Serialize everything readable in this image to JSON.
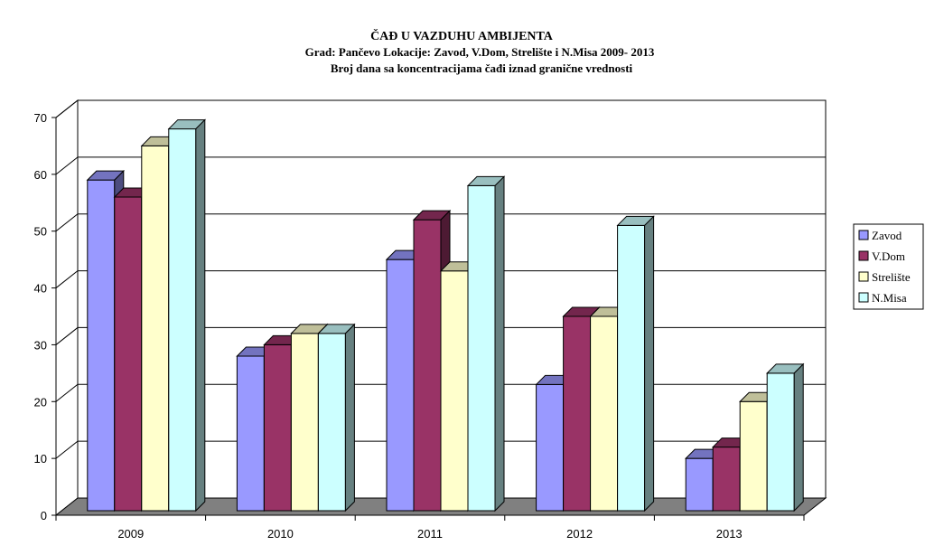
{
  "chart_data": {
    "type": "bar",
    "title": "ČAĐ U VAZDUHU AMBIJENTA",
    "subtitle": "Grad: Pančevo  Lokacije: Zavod, V.Dom, Strelište i N.Misa  2009- 2013",
    "subtitle2": "Broj dana sa koncentracijama čađi iznad granične vrednosti",
    "xlabel": "",
    "ylabel": "",
    "categories": [
      "2009",
      "2010",
      "2011",
      "2012",
      "2013"
    ],
    "ylim": [
      0,
      70
    ],
    "yticks": [
      "0",
      "10",
      "20",
      "30",
      "40",
      "50",
      "60",
      "70"
    ],
    "grid": true,
    "legend_position": "right",
    "series": [
      {
        "name": "Zavod",
        "values": [
          59,
          28,
          45,
          23,
          10
        ],
        "color": "#9999ff"
      },
      {
        "name": "V.Dom",
        "values": [
          56,
          30,
          52,
          35,
          12
        ],
        "color": "#993366"
      },
      {
        "name": "Strelište",
        "values": [
          65,
          32,
          43,
          35,
          20
        ],
        "color": "#ffffcc"
      },
      {
        "name": "N.Misa",
        "values": [
          68,
          32,
          58,
          51,
          25
        ],
        "color": "#ccffff"
      }
    ]
  }
}
